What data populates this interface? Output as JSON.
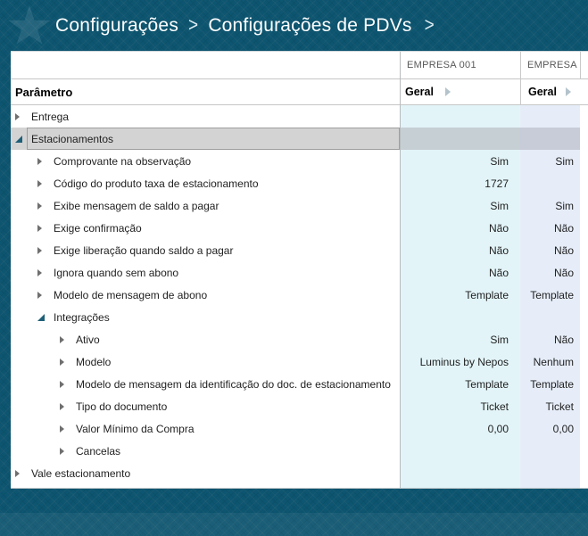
{
  "breadcrumb": {
    "items": [
      "Configurações",
      "Configurações de PDVs"
    ],
    "separator": ">"
  },
  "table": {
    "param_header": "Parâmetro",
    "columns": [
      {
        "company": "EMPRESA 001",
        "scope": "Geral"
      },
      {
        "company": "EMPRESA",
        "scope": "Geral"
      }
    ],
    "rows": [
      {
        "label": "Entrega",
        "level": 1,
        "state": "collapsed",
        "selected": false,
        "values": [
          "",
          ""
        ]
      },
      {
        "label": "Estacionamentos",
        "level": 1,
        "state": "expanded",
        "selected": true,
        "values": [
          "",
          ""
        ]
      },
      {
        "label": "Comprovante na observação",
        "level": 2,
        "state": "collapsed",
        "selected": false,
        "values": [
          "Sim",
          "Sim"
        ]
      },
      {
        "label": "Código do produto taxa de estacionamento",
        "level": 2,
        "state": "collapsed",
        "selected": false,
        "values": [
          "1727",
          ""
        ]
      },
      {
        "label": "Exibe mensagem de saldo a pagar",
        "level": 2,
        "state": "collapsed",
        "selected": false,
        "values": [
          "Sim",
          "Sim"
        ]
      },
      {
        "label": "Exige confirmação",
        "level": 2,
        "state": "collapsed",
        "selected": false,
        "values": [
          "Não",
          "Não"
        ]
      },
      {
        "label": "Exige liberação quando saldo a pagar",
        "level": 2,
        "state": "collapsed",
        "selected": false,
        "values": [
          "Não",
          "Não"
        ]
      },
      {
        "label": "Ignora quando sem abono",
        "level": 2,
        "state": "collapsed",
        "selected": false,
        "values": [
          "Não",
          "Não"
        ]
      },
      {
        "label": "Modelo de mensagem de abono",
        "level": 2,
        "state": "collapsed",
        "selected": false,
        "values": [
          "Template",
          "Template"
        ]
      },
      {
        "label": "Integrações",
        "level": 2,
        "state": "expanded",
        "selected": false,
        "values": [
          "",
          ""
        ]
      },
      {
        "label": "Ativo",
        "level": 3,
        "state": "collapsed",
        "selected": false,
        "values": [
          "Sim",
          "Não"
        ]
      },
      {
        "label": "Modelo",
        "level": 3,
        "state": "collapsed",
        "selected": false,
        "values": [
          "Luminus by Nepos",
          "Nenhum"
        ]
      },
      {
        "label": "Modelo de mensagem da identificação do doc. de estacionamento",
        "level": 3,
        "state": "collapsed",
        "selected": false,
        "values": [
          "Template",
          "Template"
        ]
      },
      {
        "label": "Tipo do documento",
        "level": 3,
        "state": "collapsed",
        "selected": false,
        "values": [
          "Ticket",
          "Ticket"
        ]
      },
      {
        "label": "Valor Mínimo da Compra",
        "level": 3,
        "state": "collapsed",
        "selected": false,
        "values": [
          "0,00",
          "0,00"
        ]
      },
      {
        "label": "Cancelas",
        "level": 3,
        "state": "collapsed",
        "selected": false,
        "values": [
          "",
          ""
        ]
      },
      {
        "label": "Vale estacionamento",
        "level": 1,
        "state": "collapsed",
        "selected": false,
        "values": [
          "",
          ""
        ]
      }
    ]
  },
  "colors": {
    "background_teal": "#0d5570",
    "panel_white": "#ffffff",
    "value_col_1": "#e2f4f8",
    "value_col_2": "#e6edf8",
    "selected_gray": "#d3d3d3",
    "expanded_marker": "#1e5f78"
  }
}
